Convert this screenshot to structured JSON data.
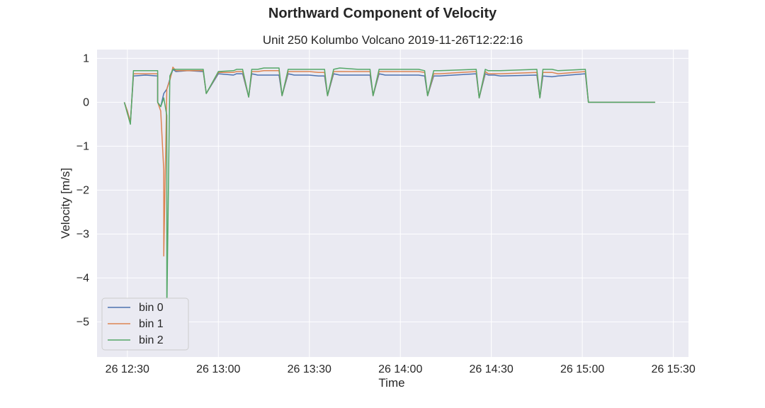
{
  "suptitle": "Northward Component of Velocity",
  "chart_data": {
    "type": "line",
    "title": "Unit 250 Kolumbo Volcano 2019-11-26T12:22:16",
    "xlabel": "Time",
    "ylabel": "Velocity [m/s]",
    "xlim": [
      "2019-11-26T12:20",
      "2019-11-26T15:35"
    ],
    "ylim": [
      -5.8,
      1.2
    ],
    "grid": true,
    "legend_position": "lower-left",
    "x_tick_labels": [
      "26 12:30",
      "26 13:00",
      "26 13:30",
      "26 14:00",
      "26 14:30",
      "26 15:00",
      "26 15:30"
    ],
    "y_tick_labels": [
      "1",
      "0",
      "−1",
      "−2",
      "−3",
      "−4",
      "−5"
    ],
    "series": [
      {
        "name": "bin 0",
        "color": "#4c72b0",
        "x": [
          "12:29",
          "12:30",
          "12:31",
          "12:32",
          "12:36",
          "12:40",
          "12:40",
          "12:41",
          "12:42",
          "12:43",
          "12:45",
          "12:46",
          "12:50",
          "12:55",
          "12:56",
          "13:00",
          "13:05",
          "13:06",
          "13:08",
          "13:10",
          "13:11",
          "13:13",
          "13:15",
          "13:20",
          "13:21",
          "13:23",
          "13:25",
          "13:30",
          "13:33",
          "13:35",
          "13:36",
          "13:38",
          "13:40",
          "13:46",
          "13:50",
          "13:51",
          "13:53",
          "13:55",
          "14:06",
          "14:08",
          "14:09",
          "14:11",
          "14:13",
          "14:25",
          "14:26",
          "14:28",
          "14:29",
          "14:31",
          "14:33",
          "14:45",
          "14:46",
          "14:47",
          "14:50",
          "14:52",
          "15:01",
          "15:02",
          "15:04",
          "15:05",
          "15:10",
          "15:15",
          "15:20",
          "15:24"
        ],
        "y": [
          0.0,
          -0.2,
          -0.45,
          0.6,
          0.62,
          0.6,
          0.0,
          -0.1,
          0.2,
          0.3,
          0.75,
          0.7,
          0.72,
          0.7,
          0.2,
          0.65,
          0.62,
          0.65,
          0.65,
          0.12,
          0.65,
          0.62,
          0.62,
          0.62,
          0.15,
          0.65,
          0.62,
          0.62,
          0.6,
          0.6,
          0.15,
          0.65,
          0.62,
          0.62,
          0.62,
          0.15,
          0.65,
          0.62,
          0.62,
          0.6,
          0.15,
          0.6,
          0.6,
          0.65,
          0.1,
          0.65,
          0.62,
          0.62,
          0.6,
          0.62,
          0.1,
          0.6,
          0.58,
          0.6,
          0.65,
          0.0,
          0.0,
          0.0,
          0.0,
          0.0,
          0.0,
          0.0
        ]
      },
      {
        "name": "bin 1",
        "color": "#dd8452",
        "x": [
          "12:29",
          "12:30",
          "12:31",
          "12:32",
          "12:36",
          "12:40",
          "12:40",
          "12:41",
          "12:42",
          "12:42",
          "12:43",
          "12:44",
          "12:45",
          "12:46",
          "12:50",
          "12:55",
          "12:56",
          "13:00",
          "13:05",
          "13:06",
          "13:08",
          "13:10",
          "13:11",
          "13:13",
          "13:15",
          "13:20",
          "13:21",
          "13:23",
          "13:25",
          "13:30",
          "13:33",
          "13:35",
          "13:36",
          "13:38",
          "13:40",
          "13:46",
          "13:50",
          "13:51",
          "13:53",
          "13:55",
          "14:06",
          "14:08",
          "14:09",
          "14:11",
          "14:13",
          "14:25",
          "14:26",
          "14:28",
          "14:29",
          "14:31",
          "14:33",
          "14:45",
          "14:46",
          "14:47",
          "14:50",
          "14:52",
          "15:01",
          "15:02",
          "15:04",
          "15:05",
          "15:10",
          "15:15",
          "15:20",
          "15:24"
        ],
        "y": [
          0.0,
          -0.2,
          -0.45,
          0.65,
          0.65,
          0.65,
          0.0,
          -0.2,
          -1.55,
          -3.5,
          0.3,
          0.5,
          0.8,
          0.72,
          0.72,
          0.72,
          0.2,
          0.68,
          0.68,
          0.7,
          0.7,
          0.12,
          0.7,
          0.7,
          0.72,
          0.72,
          0.15,
          0.7,
          0.7,
          0.7,
          0.68,
          0.68,
          0.15,
          0.7,
          0.7,
          0.7,
          0.7,
          0.15,
          0.7,
          0.7,
          0.7,
          0.68,
          0.15,
          0.65,
          0.65,
          0.7,
          0.1,
          0.7,
          0.65,
          0.65,
          0.65,
          0.68,
          0.1,
          0.68,
          0.68,
          0.65,
          0.7,
          0.0,
          0.0,
          0.0,
          0.0,
          0.0,
          0.0,
          0.0
        ]
      },
      {
        "name": "bin 2",
        "color": "#55a868",
        "x": [
          "12:29",
          "12:30",
          "12:31",
          "12:32",
          "12:36",
          "12:40",
          "12:40",
          "12:41",
          "12:42",
          "12:43",
          "12:43",
          "12:43",
          "12:44",
          "12:45",
          "12:46",
          "12:50",
          "12:55",
          "12:56",
          "13:00",
          "13:05",
          "13:06",
          "13:08",
          "13:10",
          "13:11",
          "13:13",
          "13:15",
          "13:20",
          "13:21",
          "13:23",
          "13:25",
          "13:30",
          "13:33",
          "13:35",
          "13:36",
          "13:38",
          "13:40",
          "13:46",
          "13:50",
          "13:51",
          "13:53",
          "13:55",
          "14:06",
          "14:08",
          "14:09",
          "14:11",
          "14:13",
          "14:25",
          "14:26",
          "14:28",
          "14:29",
          "14:31",
          "14:33",
          "14:45",
          "14:46",
          "14:47",
          "14:50",
          "14:52",
          "15:01",
          "15:02",
          "15:04",
          "15:05",
          "15:10",
          "15:15",
          "15:20",
          "15:24"
        ],
        "y": [
          0.0,
          -0.25,
          -0.5,
          0.72,
          0.72,
          0.72,
          0.0,
          -0.1,
          0.1,
          -0.3,
          -5.5,
          -4.8,
          0.6,
          0.75,
          0.75,
          0.75,
          0.75,
          0.2,
          0.7,
          0.72,
          0.75,
          0.75,
          0.12,
          0.75,
          0.75,
          0.78,
          0.78,
          0.15,
          0.75,
          0.75,
          0.75,
          0.75,
          0.75,
          0.15,
          0.75,
          0.78,
          0.75,
          0.75,
          0.15,
          0.75,
          0.75,
          0.75,
          0.72,
          0.15,
          0.72,
          0.72,
          0.75,
          0.1,
          0.75,
          0.72,
          0.72,
          0.72,
          0.75,
          0.1,
          0.75,
          0.75,
          0.72,
          0.75,
          0.0,
          0.0,
          0.0,
          0.0,
          0.0,
          0.0,
          0.0
        ]
      }
    ]
  }
}
